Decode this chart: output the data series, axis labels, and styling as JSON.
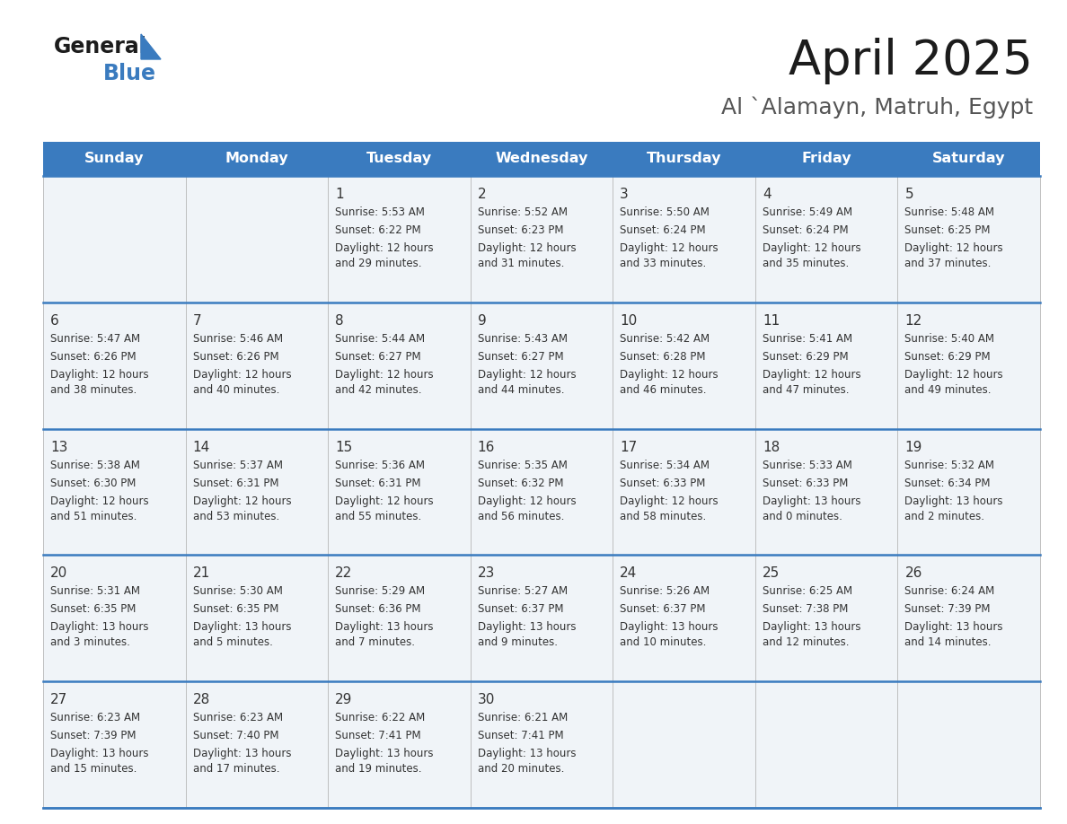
{
  "title": "April 2025",
  "subtitle": "Al `Alamayn, Matruh, Egypt",
  "header_color": "#3a7bbf",
  "header_text_color": "#ffffff",
  "border_color": "#3a7bbf",
  "text_color": "#333333",
  "cell_bg_even": "#f0f4f8",
  "cell_bg_odd": "#ffffff",
  "days_of_week": [
    "Sunday",
    "Monday",
    "Tuesday",
    "Wednesday",
    "Thursday",
    "Friday",
    "Saturday"
  ],
  "weeks": [
    [
      {
        "day": null,
        "sunrise": null,
        "sunset": null,
        "daylight": ""
      },
      {
        "day": null,
        "sunrise": null,
        "sunset": null,
        "daylight": ""
      },
      {
        "day": 1,
        "sunrise": "5:53 AM",
        "sunset": "6:22 PM",
        "daylight": "12 hours\nand 29 minutes."
      },
      {
        "day": 2,
        "sunrise": "5:52 AM",
        "sunset": "6:23 PM",
        "daylight": "12 hours\nand 31 minutes."
      },
      {
        "day": 3,
        "sunrise": "5:50 AM",
        "sunset": "6:24 PM",
        "daylight": "12 hours\nand 33 minutes."
      },
      {
        "day": 4,
        "sunrise": "5:49 AM",
        "sunset": "6:24 PM",
        "daylight": "12 hours\nand 35 minutes."
      },
      {
        "day": 5,
        "sunrise": "5:48 AM",
        "sunset": "6:25 PM",
        "daylight": "12 hours\nand 37 minutes."
      }
    ],
    [
      {
        "day": 6,
        "sunrise": "5:47 AM",
        "sunset": "6:26 PM",
        "daylight": "12 hours\nand 38 minutes."
      },
      {
        "day": 7,
        "sunrise": "5:46 AM",
        "sunset": "6:26 PM",
        "daylight": "12 hours\nand 40 minutes."
      },
      {
        "day": 8,
        "sunrise": "5:44 AM",
        "sunset": "6:27 PM",
        "daylight": "12 hours\nand 42 minutes."
      },
      {
        "day": 9,
        "sunrise": "5:43 AM",
        "sunset": "6:27 PM",
        "daylight": "12 hours\nand 44 minutes."
      },
      {
        "day": 10,
        "sunrise": "5:42 AM",
        "sunset": "6:28 PM",
        "daylight": "12 hours\nand 46 minutes."
      },
      {
        "day": 11,
        "sunrise": "5:41 AM",
        "sunset": "6:29 PM",
        "daylight": "12 hours\nand 47 minutes."
      },
      {
        "day": 12,
        "sunrise": "5:40 AM",
        "sunset": "6:29 PM",
        "daylight": "12 hours\nand 49 minutes."
      }
    ],
    [
      {
        "day": 13,
        "sunrise": "5:38 AM",
        "sunset": "6:30 PM",
        "daylight": "12 hours\nand 51 minutes."
      },
      {
        "day": 14,
        "sunrise": "5:37 AM",
        "sunset": "6:31 PM",
        "daylight": "12 hours\nand 53 minutes."
      },
      {
        "day": 15,
        "sunrise": "5:36 AM",
        "sunset": "6:31 PM",
        "daylight": "12 hours\nand 55 minutes."
      },
      {
        "day": 16,
        "sunrise": "5:35 AM",
        "sunset": "6:32 PM",
        "daylight": "12 hours\nand 56 minutes."
      },
      {
        "day": 17,
        "sunrise": "5:34 AM",
        "sunset": "6:33 PM",
        "daylight": "12 hours\nand 58 minutes."
      },
      {
        "day": 18,
        "sunrise": "5:33 AM",
        "sunset": "6:33 PM",
        "daylight": "13 hours\nand 0 minutes."
      },
      {
        "day": 19,
        "sunrise": "5:32 AM",
        "sunset": "6:34 PM",
        "daylight": "13 hours\nand 2 minutes."
      }
    ],
    [
      {
        "day": 20,
        "sunrise": "5:31 AM",
        "sunset": "6:35 PM",
        "daylight": "13 hours\nand 3 minutes."
      },
      {
        "day": 21,
        "sunrise": "5:30 AM",
        "sunset": "6:35 PM",
        "daylight": "13 hours\nand 5 minutes."
      },
      {
        "day": 22,
        "sunrise": "5:29 AM",
        "sunset": "6:36 PM",
        "daylight": "13 hours\nand 7 minutes."
      },
      {
        "day": 23,
        "sunrise": "5:27 AM",
        "sunset": "6:37 PM",
        "daylight": "13 hours\nand 9 minutes."
      },
      {
        "day": 24,
        "sunrise": "5:26 AM",
        "sunset": "6:37 PM",
        "daylight": "13 hours\nand 10 minutes."
      },
      {
        "day": 25,
        "sunrise": "6:25 AM",
        "sunset": "7:38 PM",
        "daylight": "13 hours\nand 12 minutes."
      },
      {
        "day": 26,
        "sunrise": "6:24 AM",
        "sunset": "7:39 PM",
        "daylight": "13 hours\nand 14 minutes."
      }
    ],
    [
      {
        "day": 27,
        "sunrise": "6:23 AM",
        "sunset": "7:39 PM",
        "daylight": "13 hours\nand 15 minutes."
      },
      {
        "day": 28,
        "sunrise": "6:23 AM",
        "sunset": "7:40 PM",
        "daylight": "13 hours\nand 17 minutes."
      },
      {
        "day": 29,
        "sunrise": "6:22 AM",
        "sunset": "7:41 PM",
        "daylight": "13 hours\nand 19 minutes."
      },
      {
        "day": 30,
        "sunrise": "6:21 AM",
        "sunset": "7:41 PM",
        "daylight": "13 hours\nand 20 minutes."
      },
      {
        "day": null,
        "sunrise": null,
        "sunset": null,
        "daylight": ""
      },
      {
        "day": null,
        "sunrise": null,
        "sunset": null,
        "daylight": ""
      },
      {
        "day": null,
        "sunrise": null,
        "sunset": null,
        "daylight": ""
      }
    ]
  ]
}
